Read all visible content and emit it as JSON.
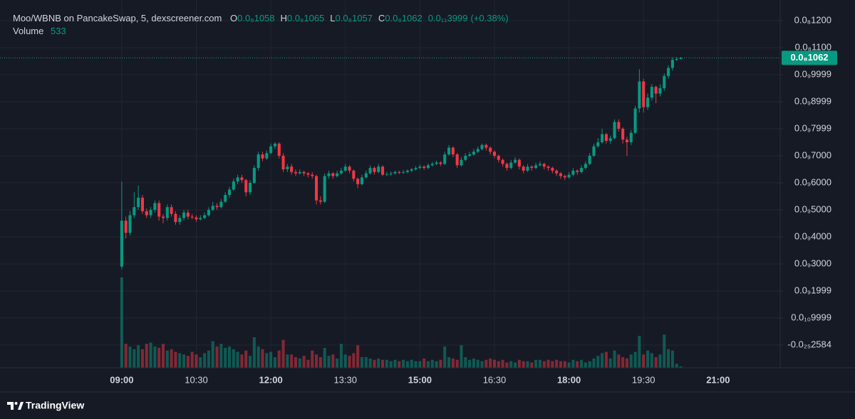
{
  "chart_data": {
    "type": "candlestick",
    "title": "Moo/WBNB on PancakeSwap, 5, dexscreener.com",
    "ohlc_legend": [
      {
        "name": "O",
        "value": 1.058e-09,
        "label": "0.0₈1058"
      },
      {
        "name": "H",
        "value": 1.065e-09,
        "label": "0.0₈1065"
      },
      {
        "name": "L",
        "value": 1.057e-09,
        "label": "0.0₈1057"
      },
      {
        "name": "C",
        "value": 1.062e-09,
        "label": "0.0₈1062"
      }
    ],
    "change": {
      "value": 3.999e-12,
      "label": "0.0₁₁3999"
    },
    "change_percent": {
      "value": 0.38,
      "label": "(+0.38%)"
    },
    "volume_name": "Volume",
    "volume_value": 533,
    "last_price": {
      "value": 1.062e-09,
      "label": "0.0₈1062"
    },
    "up_color": "#089981",
    "down_color": "#f23645",
    "grid": true,
    "xlim": [
      "06:33",
      "22:15"
    ],
    "xticks": [
      "09:00",
      "10:30",
      "12:00",
      "13:30",
      "15:00",
      "16:30",
      "18:00",
      "19:30",
      "21:00"
    ],
    "ylim": [
      -8.42e-11,
      1.2763e-09
    ],
    "yticks": [
      {
        "value": 1.2e-09,
        "label": "0.0₈1200"
      },
      {
        "value": 1.1e-09,
        "label": "0.0₈1100"
      },
      {
        "value": 9.999e-10,
        "label": "0.0₉9999"
      },
      {
        "value": 8.999e-10,
        "label": "0.0₉8999"
      },
      {
        "value": 7.999e-10,
        "label": "0.0₉7999"
      },
      {
        "value": 7e-10,
        "label": "0.0₉7000"
      },
      {
        "value": 6e-10,
        "label": "0.0₉6000"
      },
      {
        "value": 5e-10,
        "label": "0.0₉5000"
      },
      {
        "value": 4e-10,
        "label": "0.0₉4000"
      },
      {
        "value": 3e-10,
        "label": "0.0₉3000"
      },
      {
        "value": 1.999e-10,
        "label": "0.0₉1999"
      },
      {
        "value": 9.999e-11,
        "label": "0.0₁₀9999"
      },
      {
        "value": -2.584e-25,
        "label": "-0.0₂₅2584"
      }
    ],
    "x": [
      "09:00",
      "09:05",
      "09:10",
      "09:15",
      "09:20",
      "09:25",
      "09:30",
      "09:35",
      "09:40",
      "09:45",
      "09:50",
      "09:55",
      "10:00",
      "10:05",
      "10:10",
      "10:15",
      "10:20",
      "10:25",
      "10:30",
      "10:35",
      "10:40",
      "10:45",
      "10:50",
      "10:55",
      "11:00",
      "11:05",
      "11:10",
      "11:15",
      "11:20",
      "11:25",
      "11:30",
      "11:35",
      "11:40",
      "11:45",
      "11:50",
      "11:55",
      "12:00",
      "12:05",
      "12:10",
      "12:15",
      "12:20",
      "12:25",
      "12:30",
      "12:35",
      "12:40",
      "12:45",
      "12:50",
      "12:55",
      "13:00",
      "13:05",
      "13:10",
      "13:15",
      "13:20",
      "13:25",
      "13:30",
      "13:35",
      "13:40",
      "13:45",
      "13:50",
      "13:55",
      "14:00",
      "14:05",
      "14:10",
      "14:15",
      "14:20",
      "14:25",
      "14:30",
      "14:35",
      "14:40",
      "14:45",
      "14:50",
      "14:55",
      "15:00",
      "15:05",
      "15:10",
      "15:15",
      "15:20",
      "15:25",
      "15:30",
      "15:35",
      "15:40",
      "15:45",
      "15:50",
      "15:55",
      "16:00",
      "16:05",
      "16:10",
      "16:15",
      "16:20",
      "16:25",
      "16:30",
      "16:35",
      "16:40",
      "16:45",
      "16:50",
      "16:55",
      "17:00",
      "17:05",
      "17:10",
      "17:15",
      "17:20",
      "17:25",
      "17:30",
      "17:35",
      "17:40",
      "17:45",
      "17:50",
      "17:55",
      "18:00",
      "18:05",
      "18:10",
      "18:15",
      "18:20",
      "18:25",
      "18:30",
      "18:35",
      "18:40",
      "18:45",
      "18:50",
      "18:55",
      "19:00",
      "19:05",
      "19:10",
      "19:15",
      "19:20",
      "19:25",
      "19:30",
      "19:35",
      "19:40",
      "19:45",
      "19:50",
      "19:55",
      "20:00",
      "20:05",
      "20:10",
      "20:15"
    ],
    "open": [
      2.9e-10,
      4.6e-10,
      4.15e-10,
      4.8e-10,
      5.1e-10,
      5.45e-10,
      4.95e-10,
      4.8e-10,
      5e-10,
      5.25e-10,
      4.75e-10,
      4.7e-10,
      5.1e-10,
      4.85e-10,
      4.55e-10,
      4.7e-10,
      4.9e-10,
      4.75e-10,
      4.72e-10,
      4.65e-10,
      4.7e-10,
      4.8e-10,
      5e-10,
      5.15e-10,
      5.1e-10,
      5.3e-10,
      5.55e-10,
      5.75e-10,
      6.05e-10,
      6.2e-10,
      6.1e-10,
      5.65e-10,
      6e-10,
      6.55e-10,
      7.05e-10,
      6.9e-10,
      7.1e-10,
      7.35e-10,
      7.45e-10,
      7e-10,
      6.5e-10,
      6.6e-10,
      6.4e-10,
      6.35e-10,
      6.4e-10,
      6.35e-10,
      6.3e-10,
      6.25e-10,
      5.35e-10,
      5.3e-10,
      6.25e-10,
      6.35e-10,
      6.25e-10,
      6.35e-10,
      6.45e-10,
      6.6e-10,
      6.45e-10,
      6.15e-10,
      5.95e-10,
      6.2e-10,
      6.35e-10,
      6.55e-10,
      6.4e-10,
      6.6e-10,
      6.3e-10,
      6.32e-10,
      6.35e-10,
      6.4e-10,
      6.38e-10,
      6.4e-10,
      6.45e-10,
      6.5e-10,
      6.55e-10,
      6.6e-10,
      6.55e-10,
      6.65e-10,
      6.7e-10,
      6.75e-10,
      6.7e-10,
      7.05e-10,
      7.3e-10,
      7.05e-10,
      6.65e-10,
      6.85e-10,
      7e-10,
      7.05e-10,
      7.15e-10,
      7.25e-10,
      7.4e-10,
      7.3e-10,
      7.15e-10,
      7e-10,
      6.85e-10,
      6.7e-10,
      6.55e-10,
      6.75e-10,
      6.85e-10,
      6.6e-10,
      6.45e-10,
      6.6e-10,
      6.55e-10,
      6.65e-10,
      6.7e-10,
      6.6e-10,
      6.55e-10,
      6.45e-10,
      6.35e-10,
      6.25e-10,
      6.2e-10,
      6.3e-10,
      6.45e-10,
      6.4e-10,
      6.55e-10,
      6.7e-10,
      7e-10,
      7.35e-10,
      7.5e-10,
      7.8e-10,
      7.55e-10,
      7.65e-10,
      8.25e-10,
      8e-10,
      7.6e-10,
      7.5e-10,
      7.85e-10,
      8.75e-10,
      9.75e-10,
      8.8e-10,
      9.15e-10,
      9.55e-10,
      9.3e-10,
      9.5e-10,
      9.95e-10,
      1.025e-09,
      1.055e-09,
      1.058e-09
    ],
    "high": [
      6.05e-10,
      4.75e-10,
      4.95e-10,
      5.65e-10,
      5.9e-10,
      5.55e-10,
      5.05e-10,
      5.1e-10,
      5.35e-10,
      5.35e-10,
      4.85e-10,
      5.2e-10,
      5.2e-10,
      4.95e-10,
      4.8e-10,
      5e-10,
      5e-10,
      4.85e-10,
      4.8e-10,
      4.8e-10,
      4.9e-10,
      5.1e-10,
      5.3e-10,
      5.25e-10,
      5.4e-10,
      5.65e-10,
      5.85e-10,
      6.15e-10,
      6.3e-10,
      6.3e-10,
      6.15e-10,
      6.1e-10,
      6.65e-10,
      7.15e-10,
      7.15e-10,
      7.2e-10,
      7.45e-10,
      7.5e-10,
      7.5e-10,
      7.1e-10,
      6.7e-10,
      6.7e-10,
      6.5e-10,
      6.5e-10,
      6.45e-10,
      6.4e-10,
      6.4e-10,
      6.3e-10,
      5.5e-10,
      6.35e-10,
      6.45e-10,
      6.4e-10,
      6.45e-10,
      6.55e-10,
      6.7e-10,
      6.65e-10,
      6.5e-10,
      6.2e-10,
      6.3e-10,
      6.45e-10,
      6.65e-10,
      6.6e-10,
      6.7e-10,
      6.65e-10,
      6.4e-10,
      6.42e-10,
      6.45e-10,
      6.45e-10,
      6.47e-10,
      6.5e-10,
      6.55e-10,
      6.62e-10,
      6.68e-10,
      6.65e-10,
      6.72e-10,
      6.78e-10,
      6.82e-10,
      6.8e-10,
      7.15e-10,
      7.4e-10,
      7.35e-10,
      7.1e-10,
      6.95e-10,
      7.1e-10,
      7.15e-10,
      7.25e-10,
      7.35e-10,
      7.45e-10,
      7.45e-10,
      7.35e-10,
      7.2e-10,
      7.05e-10,
      6.9e-10,
      6.75e-10,
      6.85e-10,
      6.95e-10,
      6.9e-10,
      6.65e-10,
      6.7e-10,
      6.65e-10,
      6.75e-10,
      6.8e-10,
      6.75e-10,
      6.65e-10,
      6.6e-10,
      6.5e-10,
      6.4e-10,
      6.3e-10,
      6.4e-10,
      6.55e-10,
      6.5e-10,
      6.65e-10,
      6.8e-10,
      7.1e-10,
      7.45e-10,
      7.65e-10,
      8e-10,
      7.85e-10,
      7.75e-10,
      8.35e-10,
      8.35e-10,
      8.05e-10,
      7.7e-10,
      7.95e-10,
      8.85e-10,
      1.02e-09,
      9.85e-10,
      9.3e-10,
      9.65e-10,
      9.6e-10,
      9.65e-10,
      1.005e-09,
      1.035e-09,
      1.065e-09,
      1.065e-09,
      1.065e-09
    ],
    "low": [
      2.8e-10,
      3.95e-10,
      4.05e-10,
      4.7e-10,
      5e-10,
      4.85e-10,
      4.7e-10,
      4.7e-10,
      4.9e-10,
      4.6e-10,
      4.5e-10,
      4.6e-10,
      4.75e-10,
      4.45e-10,
      4.45e-10,
      4.6e-10,
      4.65e-10,
      4.65e-10,
      4.55e-10,
      4.6e-10,
      4.65e-10,
      4.75e-10,
      4.95e-10,
      5e-10,
      5.05e-10,
      5.25e-10,
      5.45e-10,
      5.7e-10,
      5.95e-10,
      6e-10,
      5.5e-10,
      5.55e-10,
      5.95e-10,
      6.45e-10,
      6.8e-10,
      6.85e-10,
      7.05e-10,
      7.25e-10,
      6.9e-10,
      6.4e-10,
      6.4e-10,
      6.3e-10,
      6.25e-10,
      6.3e-10,
      6.25e-10,
      6.2e-10,
      6.15e-10,
      5.2e-10,
      5.2e-10,
      5.25e-10,
      6.15e-10,
      6.15e-10,
      6.2e-10,
      6.3e-10,
      6.4e-10,
      6.35e-10,
      6.05e-10,
      5.8e-10,
      5.9e-10,
      6.15e-10,
      6.3e-10,
      6.3e-10,
      6.35e-10,
      6.25e-10,
      6.25e-10,
      6.28e-10,
      6.3e-10,
      6.32e-10,
      6.33e-10,
      6.35e-10,
      6.4e-10,
      6.45e-10,
      6.5e-10,
      6.48e-10,
      6.5e-10,
      6.6e-10,
      6.65e-10,
      6.62e-10,
      6.65e-10,
      7e-10,
      6.95e-10,
      6.55e-10,
      6.6e-10,
      6.8e-10,
      6.95e-10,
      7e-10,
      7.1e-10,
      7.2e-10,
      7.2e-10,
      7.05e-10,
      6.9e-10,
      6.75e-10,
      6.6e-10,
      6.45e-10,
      6.5e-10,
      6.7e-10,
      6.5e-10,
      6.35e-10,
      6.4e-10,
      6.45e-10,
      6.5e-10,
      6.6e-10,
      6.5e-10,
      6.45e-10,
      6.35e-10,
      6.25e-10,
      6.15e-10,
      6.1e-10,
      6.15e-10,
      6.25e-10,
      6.3e-10,
      6.35e-10,
      6.5e-10,
      6.65e-10,
      6.95e-10,
      7.3e-10,
      7.45e-10,
      7.45e-10,
      7.45e-10,
      7.6e-10,
      7.9e-10,
      7.45e-10,
      7e-10,
      7.4e-10,
      7.8e-10,
      8.6e-10,
      8.6e-10,
      8.7e-10,
      9.05e-10,
      8.95e-10,
      9.2e-10,
      9.4e-10,
      9.85e-10,
      1.015e-09,
      1.05e-09,
      1.057e-09
    ],
    "close": [
      4.6e-10,
      4.15e-10,
      4.8e-10,
      5.1e-10,
      5.45e-10,
      4.95e-10,
      4.8e-10,
      5e-10,
      5.25e-10,
      4.75e-10,
      4.7e-10,
      5.1e-10,
      4.85e-10,
      4.55e-10,
      4.7e-10,
      4.9e-10,
      4.75e-10,
      4.72e-10,
      4.65e-10,
      4.7e-10,
      4.8e-10,
      5e-10,
      5.15e-10,
      5.1e-10,
      5.3e-10,
      5.55e-10,
      5.75e-10,
      6.05e-10,
      6.2e-10,
      6.1e-10,
      5.65e-10,
      6e-10,
      6.55e-10,
      7.05e-10,
      6.9e-10,
      7.1e-10,
      7.35e-10,
      7.45e-10,
      7e-10,
      6.5e-10,
      6.6e-10,
      6.4e-10,
      6.35e-10,
      6.4e-10,
      6.35e-10,
      6.3e-10,
      6.25e-10,
      5.35e-10,
      5.3e-10,
      6.25e-10,
      6.35e-10,
      6.25e-10,
      6.35e-10,
      6.45e-10,
      6.6e-10,
      6.45e-10,
      6.15e-10,
      5.95e-10,
      6.2e-10,
      6.35e-10,
      6.55e-10,
      6.4e-10,
      6.6e-10,
      6.3e-10,
      6.32e-10,
      6.35e-10,
      6.4e-10,
      6.38e-10,
      6.4e-10,
      6.45e-10,
      6.5e-10,
      6.55e-10,
      6.6e-10,
      6.55e-10,
      6.65e-10,
      6.7e-10,
      6.75e-10,
      6.7e-10,
      7.05e-10,
      7.3e-10,
      7.05e-10,
      6.65e-10,
      6.85e-10,
      7e-10,
      7.05e-10,
      7.15e-10,
      7.25e-10,
      7.4e-10,
      7.3e-10,
      7.15e-10,
      7e-10,
      6.85e-10,
      6.7e-10,
      6.55e-10,
      6.75e-10,
      6.85e-10,
      6.6e-10,
      6.45e-10,
      6.6e-10,
      6.55e-10,
      6.65e-10,
      6.7e-10,
      6.6e-10,
      6.55e-10,
      6.45e-10,
      6.35e-10,
      6.25e-10,
      6.2e-10,
      6.3e-10,
      6.45e-10,
      6.4e-10,
      6.55e-10,
      6.7e-10,
      7e-10,
      7.35e-10,
      7.5e-10,
      7.8e-10,
      7.55e-10,
      7.65e-10,
      8.25e-10,
      8e-10,
      7.6e-10,
      7.5e-10,
      7.85e-10,
      8.75e-10,
      9.75e-10,
      8.8e-10,
      9.15e-10,
      9.55e-10,
      9.3e-10,
      9.5e-10,
      9.95e-10,
      1.025e-09,
      1.055e-09,
      1.058e-09,
      1.062e-09
    ],
    "volume": [
      34000,
      9000,
      8000,
      7000,
      8500,
      7000,
      9000,
      9500,
      8000,
      7500,
      9000,
      6500,
      7000,
      6000,
      5500,
      5000,
      4500,
      6000,
      5000,
      4000,
      5500,
      6500,
      10000,
      8000,
      9000,
      7500,
      8000,
      7000,
      6000,
      5000,
      6500,
      4500,
      11500,
      8000,
      7000,
      5500,
      6000,
      4000,
      6500,
      10500,
      5000,
      5000,
      4000,
      3500,
      4500,
      3000,
      6500,
      5000,
      4000,
      7500,
      4500,
      5000,
      3500,
      9000,
      5000,
      4500,
      5500,
      8500,
      4000,
      4000,
      3500,
      3000,
      3500,
      3000,
      3000,
      2500,
      3000,
      2500,
      3000,
      2500,
      3000,
      2500,
      2500,
      3500,
      2500,
      3000,
      2500,
      3000,
      8000,
      4000,
      3500,
      3000,
      8500,
      4000,
      3000,
      3500,
      3000,
      2500,
      3000,
      3500,
      3000,
      2500,
      3000,
      2000,
      2500,
      2000,
      3000,
      2500,
      2500,
      2000,
      3000,
      3000,
      2500,
      3000,
      2500,
      3000,
      2500,
      2500,
      2000,
      3000,
      2500,
      3000,
      2000,
      2500,
      3500,
      4500,
      5500,
      6000,
      3500,
      6500,
      5000,
      4000,
      3500,
      5000,
      6000,
      12000,
      5000,
      6500,
      5500,
      4000,
      5000,
      12500,
      7000,
      6500,
      1500,
      533
    ]
  },
  "footer": {
    "brand": "TradingView"
  }
}
